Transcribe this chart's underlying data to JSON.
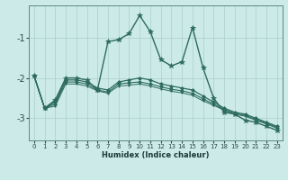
{
  "xlabel": "Humidex (Indice chaleur)",
  "bg_color": "#cceae7",
  "line_color": "#2d6b5e",
  "grid_color": "#aacfcc",
  "xlim": [
    -0.5,
    23.5
  ],
  "ylim": [
    -3.55,
    -0.2
  ],
  "yticks": [
    -3,
    -2,
    -1
  ],
  "xticks": [
    0,
    1,
    2,
    3,
    4,
    5,
    6,
    7,
    8,
    9,
    10,
    11,
    12,
    13,
    14,
    15,
    16,
    17,
    18,
    19,
    20,
    21,
    22,
    23
  ],
  "series": [
    {
      "x": [
        0,
        1,
        2,
        3,
        4,
        5,
        6,
        7,
        8,
        9,
        10,
        11,
        12,
        13,
        14,
        15,
        16,
        17,
        18,
        19,
        20,
        21,
        22,
        23
      ],
      "y": [
        -1.95,
        -2.75,
        -2.55,
        -2.0,
        -2.0,
        -2.05,
        -2.3,
        -1.1,
        -1.05,
        -0.9,
        -0.45,
        -0.85,
        -1.55,
        -1.7,
        -1.6,
        -0.75,
        -1.75,
        -2.5,
        -2.85,
        -2.9,
        -3.05,
        -3.1,
        -3.2,
        -3.3
      ],
      "marker": "*",
      "markersize": 4,
      "lw": 1.0
    },
    {
      "x": [
        0,
        1,
        2,
        3,
        4,
        5,
        6,
        7,
        8,
        9,
        10,
        11,
        12,
        13,
        14,
        15,
        16,
        17,
        18,
        19,
        20,
        21,
        22,
        23
      ],
      "y": [
        -1.95,
        -2.75,
        -2.6,
        -2.05,
        -2.05,
        -2.1,
        -2.25,
        -2.3,
        -2.1,
        -2.05,
        -2.0,
        -2.05,
        -2.15,
        -2.2,
        -2.25,
        -2.3,
        -2.45,
        -2.6,
        -2.75,
        -2.85,
        -2.9,
        -3.0,
        -3.1,
        -3.2
      ],
      "marker": "D",
      "markersize": 2,
      "lw": 0.9
    },
    {
      "x": [
        0,
        1,
        2,
        3,
        4,
        5,
        6,
        7,
        8,
        9,
        10,
        11,
        12,
        13,
        14,
        15,
        16,
        17,
        18,
        19,
        20,
        21,
        22,
        23
      ],
      "y": [
        -1.95,
        -2.75,
        -2.65,
        -2.1,
        -2.1,
        -2.15,
        -2.3,
        -2.35,
        -2.15,
        -2.12,
        -2.1,
        -2.15,
        -2.22,
        -2.28,
        -2.32,
        -2.38,
        -2.52,
        -2.65,
        -2.78,
        -2.88,
        -2.93,
        -3.03,
        -3.12,
        -3.23
      ],
      "marker": "D",
      "markersize": 2,
      "lw": 0.8
    },
    {
      "x": [
        0,
        1,
        2,
        3,
        4,
        5,
        6,
        7,
        8,
        9,
        10,
        11,
        12,
        13,
        14,
        15,
        16,
        17,
        18,
        19,
        20,
        21,
        22,
        23
      ],
      "y": [
        -1.95,
        -2.75,
        -2.7,
        -2.15,
        -2.15,
        -2.2,
        -2.32,
        -2.38,
        -2.2,
        -2.18,
        -2.15,
        -2.2,
        -2.27,
        -2.33,
        -2.37,
        -2.43,
        -2.57,
        -2.68,
        -2.8,
        -2.9,
        -2.95,
        -3.05,
        -3.14,
        -3.25
      ],
      "marker": ".",
      "markersize": 2,
      "lw": 0.7
    }
  ]
}
